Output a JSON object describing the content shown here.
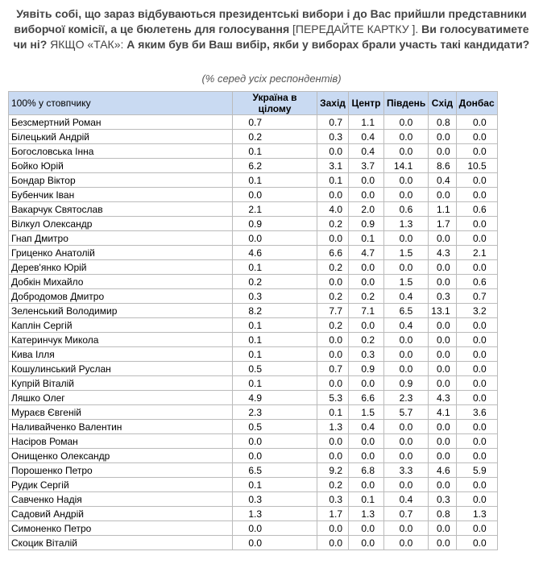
{
  "header": {
    "title_parts": [
      "Уявіть собі, що зараз відбуваються президентські вибори і до Вас прийшли представники виборчої комісії, а це бюлетень для голосування",
      "[ПЕРЕДАЙТЕ КАРТКУ ].",
      "Ви голосуватимете чи ні?",
      "ЯКЩО «ТАК»:",
      "А яким був би Ваш вибір, якби у виборах брали участь такі кандидати?"
    ],
    "subtitle": "(% серед усіх респондентів)"
  },
  "table": {
    "columns": [
      "100% у стовпчику",
      "Україна в цілому",
      "Захід",
      "Центр",
      "Південь",
      "Схід",
      "Донбас"
    ],
    "rows": [
      [
        "Безсмертний Роман",
        "0.7",
        "0.7",
        "1.1",
        "0.0",
        "0.8",
        "0.0"
      ],
      [
        "Білецький Андрій",
        "0.2",
        "0.3",
        "0.4",
        "0.0",
        "0.0",
        "0.0"
      ],
      [
        "Богословська Інна",
        "0.1",
        "0.0",
        "0.4",
        "0.0",
        "0.0",
        "0.0"
      ],
      [
        "Бойко Юрій",
        "6.2",
        "3.1",
        "3.7",
        "14.1",
        "8.6",
        "10.5"
      ],
      [
        "Бондар Віктор",
        "0.1",
        "0.1",
        "0.0",
        "0.0",
        "0.4",
        "0.0"
      ],
      [
        "Бубенчик Іван",
        "0.0",
        "0.0",
        "0.0",
        "0.0",
        "0.0",
        "0.0"
      ],
      [
        "Вакарчук Святослав",
        "2.1",
        "4.0",
        "2.0",
        "0.6",
        "1.1",
        "0.6"
      ],
      [
        "Вілкул Олександр",
        "0.9",
        "0.2",
        "0.9",
        "1.3",
        "1.7",
        "0.0"
      ],
      [
        "Гнап Дмитро",
        "0.0",
        "0.0",
        "0.1",
        "0.0",
        "0.0",
        "0.0"
      ],
      [
        "Гриценко Анатолій",
        "4.6",
        "6.6",
        "4.7",
        "1.5",
        "4.3",
        "2.1"
      ],
      [
        "Дерев'янко Юрій",
        "0.1",
        "0.2",
        "0.0",
        "0.0",
        "0.0",
        "0.0"
      ],
      [
        "Добкін Михайло",
        "0.2",
        "0.0",
        "0.0",
        "1.5",
        "0.0",
        "0.6"
      ],
      [
        "Добродомов Дмитро",
        "0.3",
        "0.2",
        "0.2",
        "0.4",
        "0.3",
        "0.7"
      ],
      [
        "Зеленський Володимир",
        "8.2",
        "7.7",
        "7.1",
        "6.5",
        "13.1",
        "3.2"
      ],
      [
        "Каплін Сергій",
        "0.1",
        "0.2",
        "0.0",
        "0.4",
        "0.0",
        "0.0"
      ],
      [
        "Катеринчук Микола",
        "0.1",
        "0.0",
        "0.2",
        "0.0",
        "0.0",
        "0.0"
      ],
      [
        "Кива Ілля",
        "0.1",
        "0.0",
        "0.3",
        "0.0",
        "0.0",
        "0.0"
      ],
      [
        "Кошулинський Руслан",
        "0.5",
        "0.7",
        "0.9",
        "0.0",
        "0.0",
        "0.0"
      ],
      [
        "Купрій Віталій",
        "0.1",
        "0.0",
        "0.0",
        "0.9",
        "0.0",
        "0.0"
      ],
      [
        "Ляшко Олег",
        "4.9",
        "5.3",
        "6.6",
        "2.3",
        "4.3",
        "0.0"
      ],
      [
        "Мураєв Євгеній",
        "2.3",
        "0.1",
        "1.5",
        "5.7",
        "4.1",
        "3.6"
      ],
      [
        "Наливайченко Валентин",
        "0.5",
        "1.3",
        "0.4",
        "0.0",
        "0.0",
        "0.0"
      ],
      [
        "Насіров Роман",
        "0.0",
        "0.0",
        "0.0",
        "0.0",
        "0.0",
        "0.0"
      ],
      [
        "Онищенко Олександр",
        "0.0",
        "0.0",
        "0.0",
        "0.0",
        "0.0",
        "0.0"
      ],
      [
        "Порошенко Петро",
        "6.5",
        "9.2",
        "6.8",
        "3.3",
        "4.6",
        "5.9"
      ],
      [
        "Рудик Сергій",
        "0.1",
        "0.2",
        "0.0",
        "0.0",
        "0.0",
        "0.0"
      ],
      [
        "Савченко Надія",
        "0.3",
        "0.3",
        "0.1",
        "0.4",
        "0.3",
        "0.0"
      ],
      [
        "Садовий Андрій",
        "1.3",
        "1.7",
        "1.3",
        "0.7",
        "0.8",
        "1.3"
      ],
      [
        "Симоненко Петро",
        "0.0",
        "0.0",
        "0.0",
        "0.0",
        "0.0",
        "0.0"
      ],
      [
        "Скоцик Віталій",
        "0.0",
        "0.0",
        "0.0",
        "0.0",
        "0.0",
        "0.0"
      ]
    ]
  }
}
